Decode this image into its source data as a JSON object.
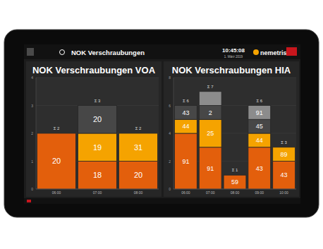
{
  "header": {
    "title": "NOK Verschraubungen",
    "time": "10:45:08",
    "date": "1. März 2019",
    "brand": "nemetris"
  },
  "chart_data": [
    {
      "type": "bar",
      "title": "NOK Verschraubungen VOA",
      "stacked": true,
      "grid": true,
      "categories": [
        "06:00",
        "07:00",
        "08:00"
      ],
      "ylim": [
        0,
        4
      ],
      "yticks": [
        0,
        1,
        2,
        3,
        4
      ],
      "series": [
        {
          "color": "#e35f0c",
          "values": [
            2,
            1,
            1
          ],
          "labels": [
            "20",
            "18",
            "20"
          ]
        },
        {
          "color": "#f5a300",
          "values": [
            null,
            1,
            1
          ],
          "labels": [
            null,
            "19",
            "31"
          ]
        },
        {
          "color": "#474747",
          "values": [
            null,
            1,
            null
          ],
          "labels": [
            null,
            "20",
            null
          ]
        }
      ],
      "totals": [
        2,
        3,
        2
      ],
      "total_labels": [
        "Σ 2",
        "Σ 3",
        "Σ 2"
      ]
    },
    {
      "type": "bar",
      "title": "NOK Verschraubungen HIA",
      "stacked": true,
      "grid": true,
      "categories": [
        "06:00",
        "07:00",
        "08:00",
        "09:00",
        "10:00"
      ],
      "ylim": [
        0,
        8
      ],
      "yticks": [
        0,
        2,
        4,
        6,
        8
      ],
      "series": [
        {
          "color": "#e35f0c",
          "values": [
            4,
            3,
            1,
            3,
            2
          ],
          "labels": [
            "91",
            "91",
            "59",
            "43",
            "43"
          ]
        },
        {
          "color": "#f5a300",
          "values": [
            1,
            2,
            null,
            1,
            1
          ],
          "labels": [
            "44",
            "25",
            null,
            "44",
            "89"
          ]
        },
        {
          "color": "#474747",
          "values": [
            1,
            1,
            null,
            1,
            null
          ],
          "labels": [
            "43",
            "2",
            null,
            "45",
            null
          ]
        },
        {
          "color": "#8c8c8c",
          "values": [
            null,
            1,
            null,
            1,
            null
          ],
          "labels": [
            null,
            null,
            null,
            "91",
            null
          ]
        }
      ],
      "totals": [
        6,
        7,
        1,
        6,
        3
      ],
      "total_labels": [
        "Σ 6",
        "Σ 7",
        "Σ 1",
        "Σ 6",
        "Σ 3"
      ]
    }
  ]
}
